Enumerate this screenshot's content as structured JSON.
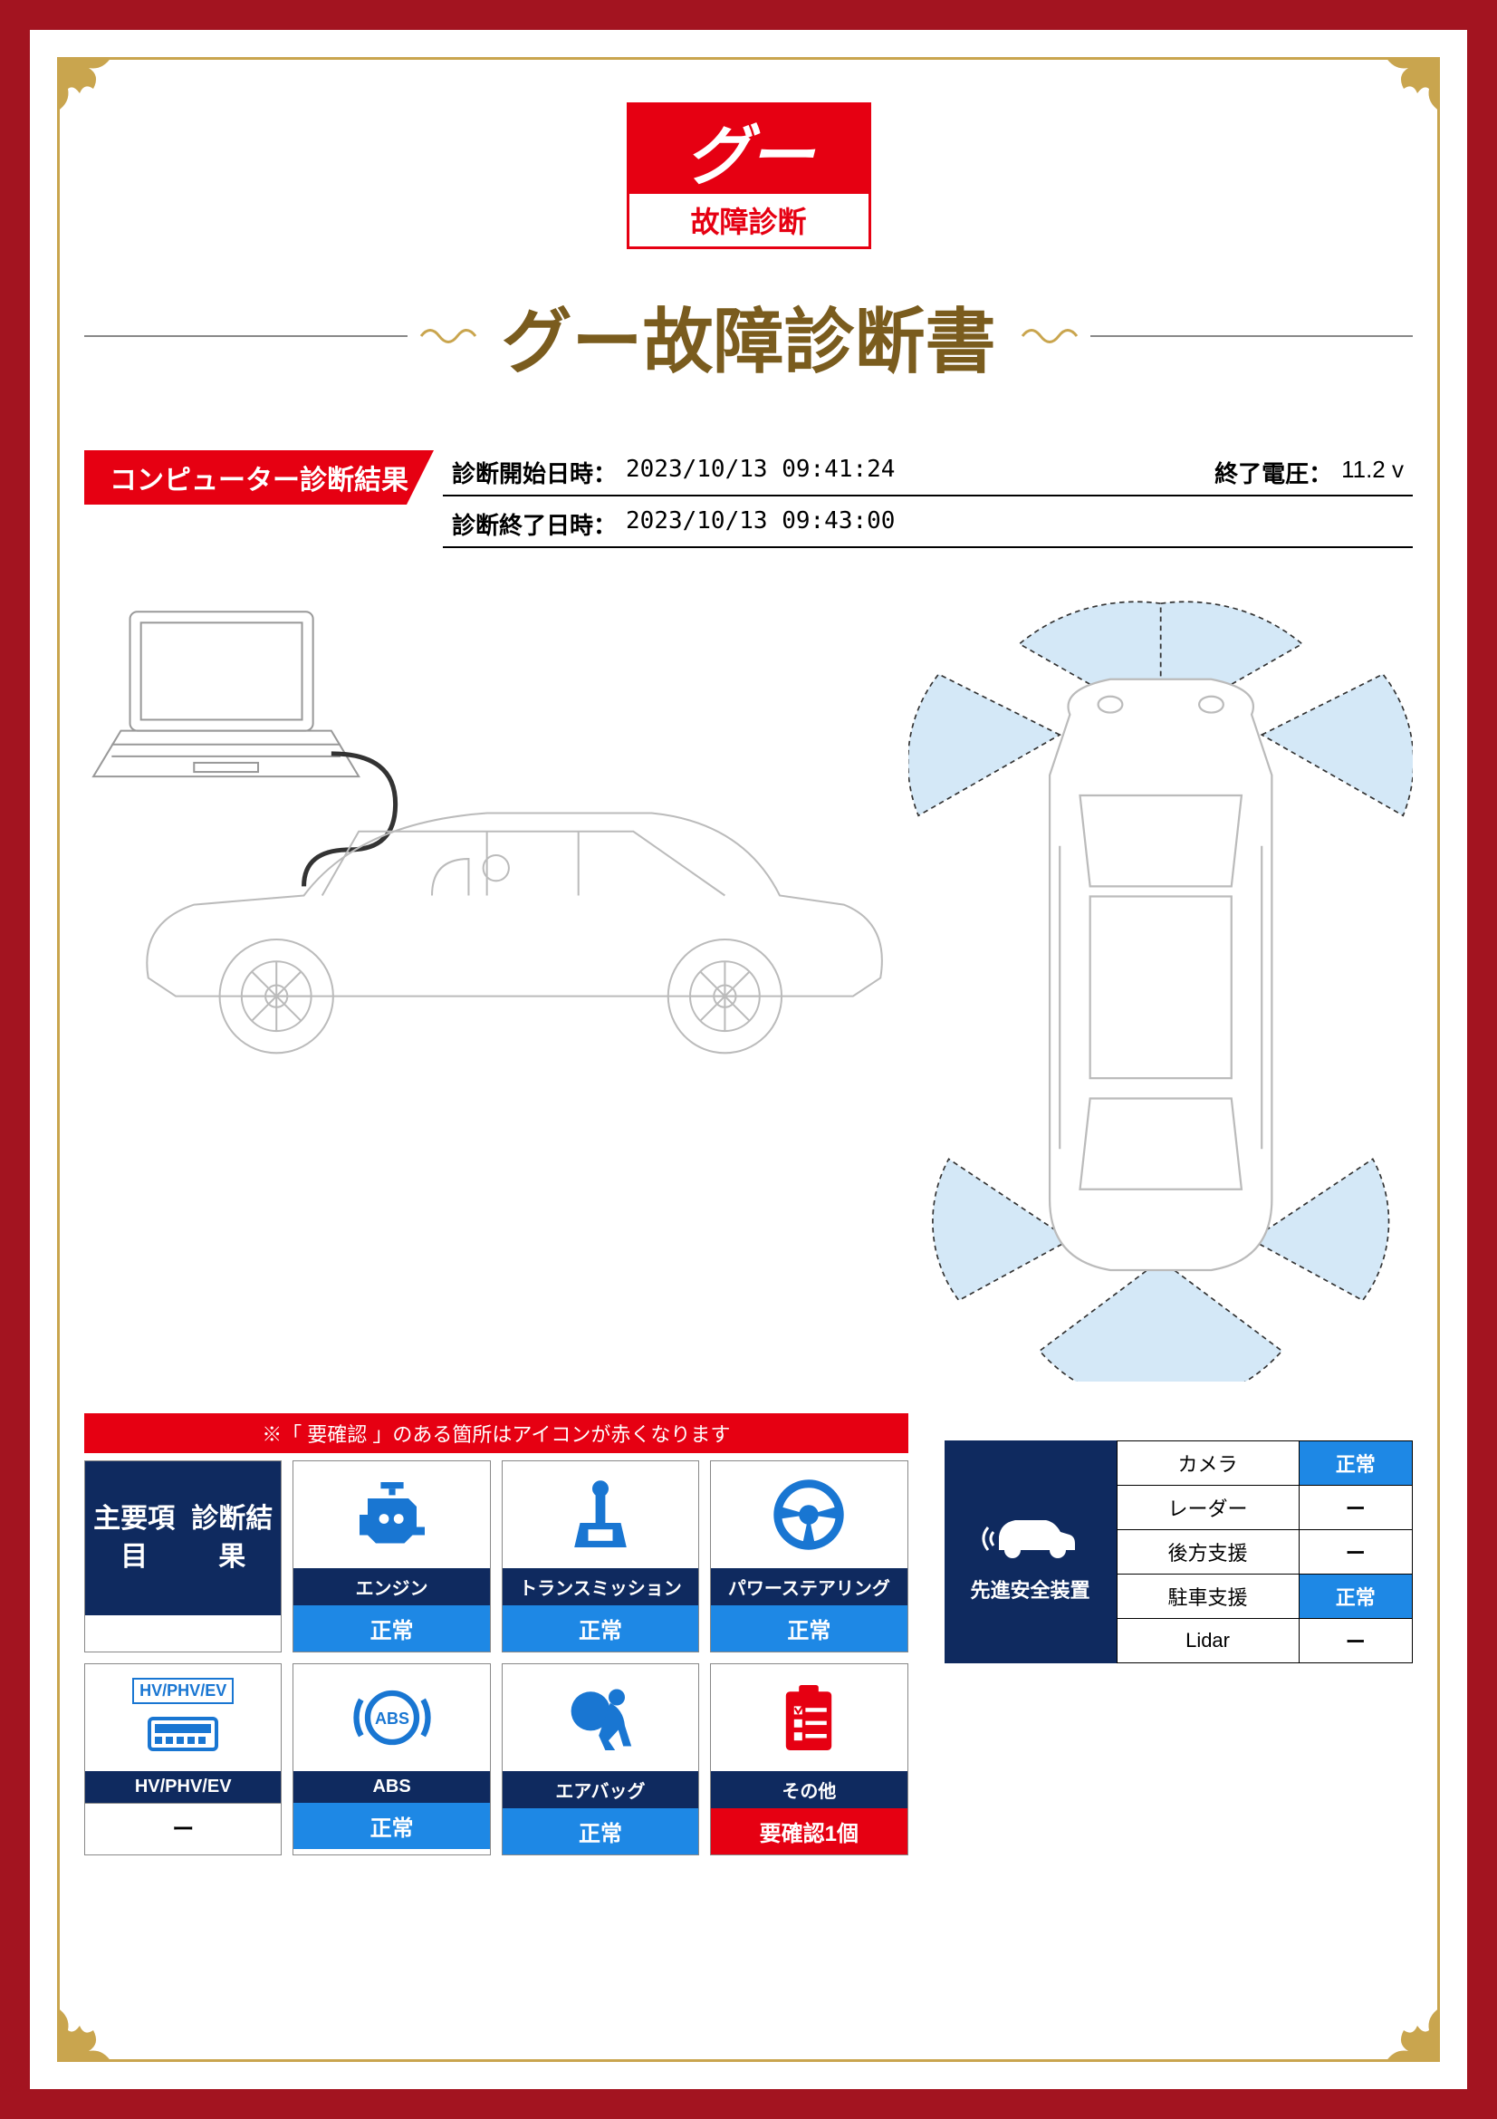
{
  "logo": {
    "brand": "グー",
    "sub": "故障診断"
  },
  "title": "グー故障診断書",
  "section": {
    "label": "コンピューター診断結果"
  },
  "meta": {
    "start_label": "診断開始日時：",
    "start_value": "2023/10/13 09:41:24",
    "end_label": "診断終了日時：",
    "end_value": "2023/10/13 09:43:00",
    "voltage_label": "終了電圧：",
    "voltage_value": "11.2 v"
  },
  "warn_note": "※「 要確認 」のある箇所はアイコンが赤くなります",
  "header_card": "主要項目\n診断結果",
  "cards_row1": [
    {
      "name": "エンジン",
      "status": "正常",
      "color": "normal",
      "icon": "engine"
    },
    {
      "name": "トランスミッション",
      "status": "正常",
      "color": "normal",
      "icon": "transmission"
    },
    {
      "name": "パワーステアリング",
      "status": "正常",
      "color": "normal",
      "icon": "steering"
    }
  ],
  "cards_row2": [
    {
      "name": "HV/PHV/EV",
      "status": "ー",
      "color": "none",
      "icon": "hv",
      "hvlabel": "HV/PHV/EV"
    },
    {
      "name": "ABS",
      "status": "正常",
      "color": "normal",
      "icon": "abs"
    },
    {
      "name": "エアバッグ",
      "status": "正常",
      "color": "normal",
      "icon": "airbag"
    },
    {
      "name": "その他",
      "status": "要確認1個",
      "color": "warn",
      "icon": "clipboard"
    }
  ],
  "sensor_header": "先進安全装置",
  "sensors": [
    {
      "name": "カメラ",
      "status": "正常",
      "color": "normal"
    },
    {
      "name": "レーダー",
      "status": "ー",
      "color": "none"
    },
    {
      "name": "後方支援",
      "status": "ー",
      "color": "none"
    },
    {
      "name": "駐車支援",
      "status": "正常",
      "color": "normal"
    },
    {
      "name": "Lidar",
      "status": "ー",
      "color": "none"
    }
  ],
  "colors": {
    "brand_red": "#e60012",
    "dark_blue": "#0f2a5f",
    "status_blue": "#1e88e5",
    "gold": "#c9a54e",
    "icon_blue": "#1976d2",
    "icon_red": "#e60012"
  }
}
